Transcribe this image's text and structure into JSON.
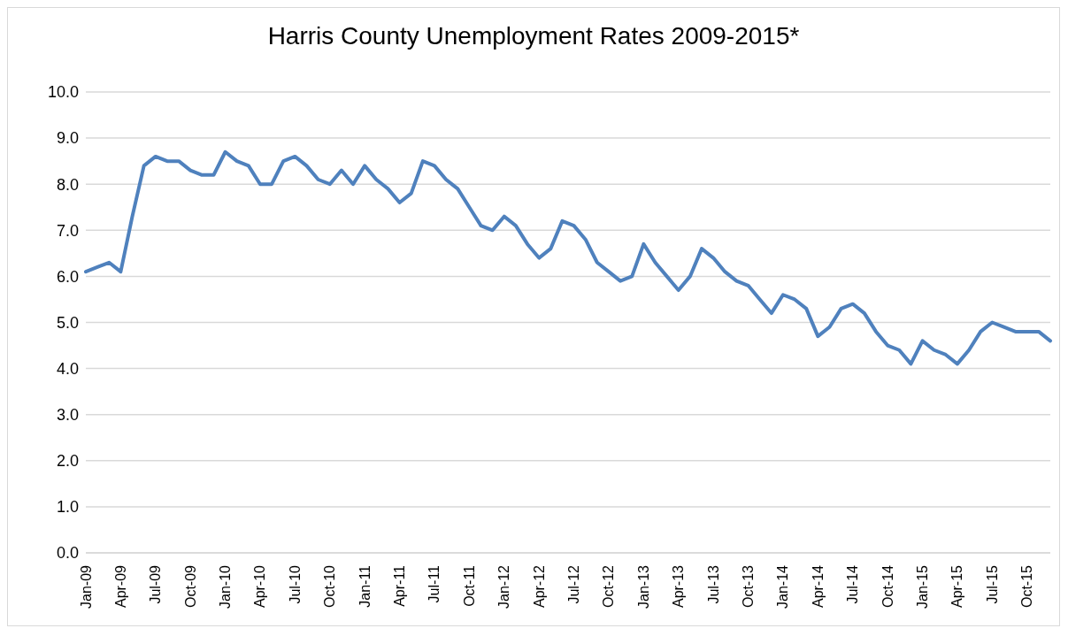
{
  "chart_data": {
    "type": "line",
    "title": "Harris County Unemployment Rates 2009-2015*",
    "categories": [
      "Jan-09",
      null,
      null,
      "Apr-09",
      null,
      null,
      "Jul-09",
      null,
      null,
      "Oct-09",
      null,
      null,
      "Jan-10",
      null,
      null,
      "Apr-10",
      null,
      null,
      "Jul-10",
      null,
      null,
      "Oct-10",
      null,
      null,
      "Jan-11",
      null,
      null,
      "Apr-11",
      null,
      null,
      "Jul-11",
      null,
      null,
      "Oct-11",
      null,
      null,
      "Jan-12",
      null,
      null,
      "Apr-12",
      null,
      null,
      "Jul-12",
      null,
      null,
      "Oct-12",
      null,
      null,
      "Jan-13",
      null,
      null,
      "Apr-13",
      null,
      null,
      "Jul-13",
      null,
      null,
      "Oct-13",
      null,
      null,
      "Jan-14",
      null,
      null,
      "Apr-14",
      null,
      null,
      "Jul-14",
      null,
      null,
      "Oct-14",
      null,
      null,
      "Jan-15",
      null,
      null,
      "Apr-15",
      null,
      null,
      "Jul-15",
      null,
      null,
      "Oct-15",
      null,
      null
    ],
    "series": [
      {
        "color": "#4f81bd",
        "values": [
          6.1,
          6.2,
          6.3,
          6.1,
          7.3,
          8.4,
          8.6,
          8.5,
          8.5,
          8.3,
          8.2,
          8.2,
          8.7,
          8.5,
          8.4,
          8.0,
          8.0,
          8.5,
          8.6,
          8.4,
          8.1,
          8.0,
          8.3,
          8.0,
          8.4,
          8.1,
          7.9,
          7.6,
          7.8,
          8.5,
          8.4,
          8.1,
          7.9,
          7.5,
          7.1,
          7.0,
          7.3,
          7.1,
          6.7,
          6.4,
          6.6,
          7.2,
          7.1,
          6.8,
          6.3,
          6.1,
          5.9,
          6.0,
          6.7,
          6.3,
          6.0,
          5.7,
          6.0,
          6.6,
          6.4,
          6.1,
          5.9,
          5.8,
          5.5,
          5.2,
          5.6,
          5.5,
          5.3,
          4.7,
          4.9,
          5.3,
          5.4,
          5.2,
          4.8,
          4.5,
          4.4,
          4.1,
          4.6,
          4.4,
          4.3,
          4.1,
          4.4,
          4.8,
          5.0,
          4.9,
          4.8,
          4.8,
          4.8,
          4.6
        ]
      }
    ],
    "ylim": [
      0,
      10
    ],
    "yticks": [
      {
        "value": 0,
        "label": "0.0"
      },
      {
        "value": 1,
        "label": "1.0"
      },
      {
        "value": 2,
        "label": "2.0"
      },
      {
        "value": 3,
        "label": "3.0"
      },
      {
        "value": 4,
        "label": "4.0"
      },
      {
        "value": 5,
        "label": "5.0"
      },
      {
        "value": 6,
        "label": "6.0"
      },
      {
        "value": 7,
        "label": "7.0"
      },
      {
        "value": 8,
        "label": "8.0"
      },
      {
        "value": 9,
        "label": "9.0"
      },
      {
        "value": 10,
        "label": "10.0"
      }
    ],
    "grid": "y",
    "marker": "none",
    "line_style": "solid",
    "legend": false
  }
}
